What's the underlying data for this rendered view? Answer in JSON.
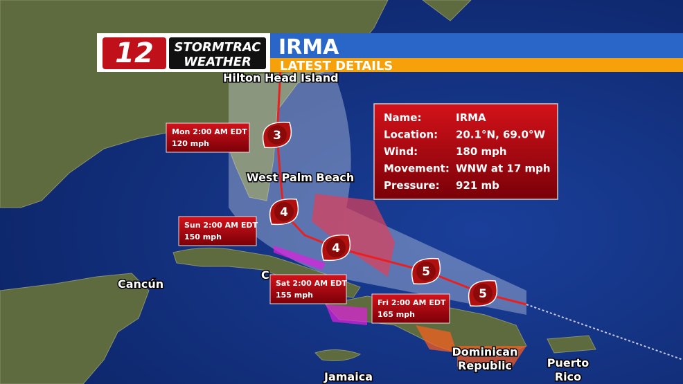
{
  "header": {
    "logo_number": "12",
    "logo_line1": "STORMTRAC",
    "logo_line2": "WEATHER",
    "title": "IRMA",
    "subtitle": "LATEST DETAILS"
  },
  "places": [
    "Hilton Head Island",
    "West Palm Beach",
    "Cancún",
    "C",
    "Jamaica",
    "Dominican Republic",
    "Puerto Rico"
  ],
  "info_box": {
    "rows": [
      [
        "Name:",
        "IRMA"
      ],
      [
        "Location:",
        "20.1°N, 69.0°W"
      ],
      [
        "Wind:",
        "180 mph"
      ],
      [
        "Movement:",
        "WNW at 17 mph"
      ],
      [
        "Pressure:",
        "921 mb"
      ]
    ]
  },
  "forecast_points": [
    {
      "time": "Mon 2:00 AM EDT",
      "wind": "120 mph"
    },
    {
      "time": "Sun 2:00 AM EDT",
      "wind": "150 mph"
    },
    {
      "time": "Sat 2:00 AM EDT",
      "wind": "155 mph"
    },
    {
      "time": "Fri 2:00 AM EDT",
      "wind": "165 mph"
    }
  ],
  "storm_icons": [
    3,
    4,
    4,
    5,
    5
  ]
}
